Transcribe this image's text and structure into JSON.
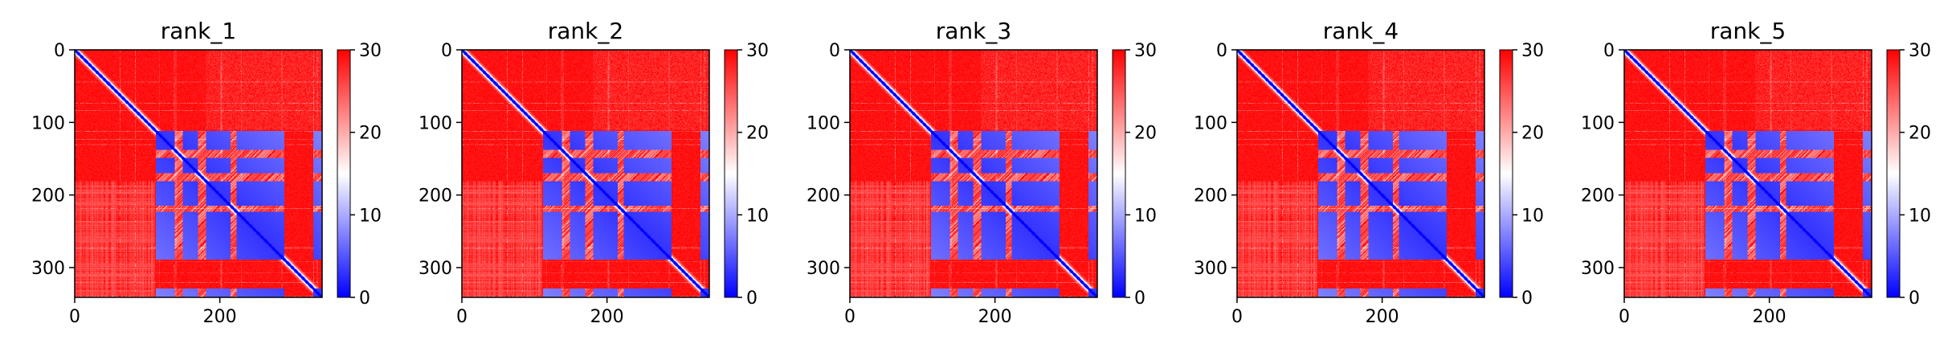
{
  "chart_data": {
    "type": "heatmap",
    "colormap": "bwr",
    "colorbar": {
      "min": 0,
      "max": 30,
      "ticks": [
        0,
        10,
        20,
        30
      ]
    },
    "xlim": [
      0,
      341
    ],
    "ylim": [
      341,
      0
    ],
    "xticks": [
      0,
      200
    ],
    "yticks": [
      0,
      100,
      200,
      300
    ],
    "domains": [
      [
        112,
        288
      ],
      [
        329,
        341
      ]
    ],
    "panels": [
      {
        "title": "rank_1"
      },
      {
        "title": "rank_2"
      },
      {
        "title": "rank_3"
      },
      {
        "title": "rank_4"
      },
      {
        "title": "rank_5"
      }
    ]
  }
}
